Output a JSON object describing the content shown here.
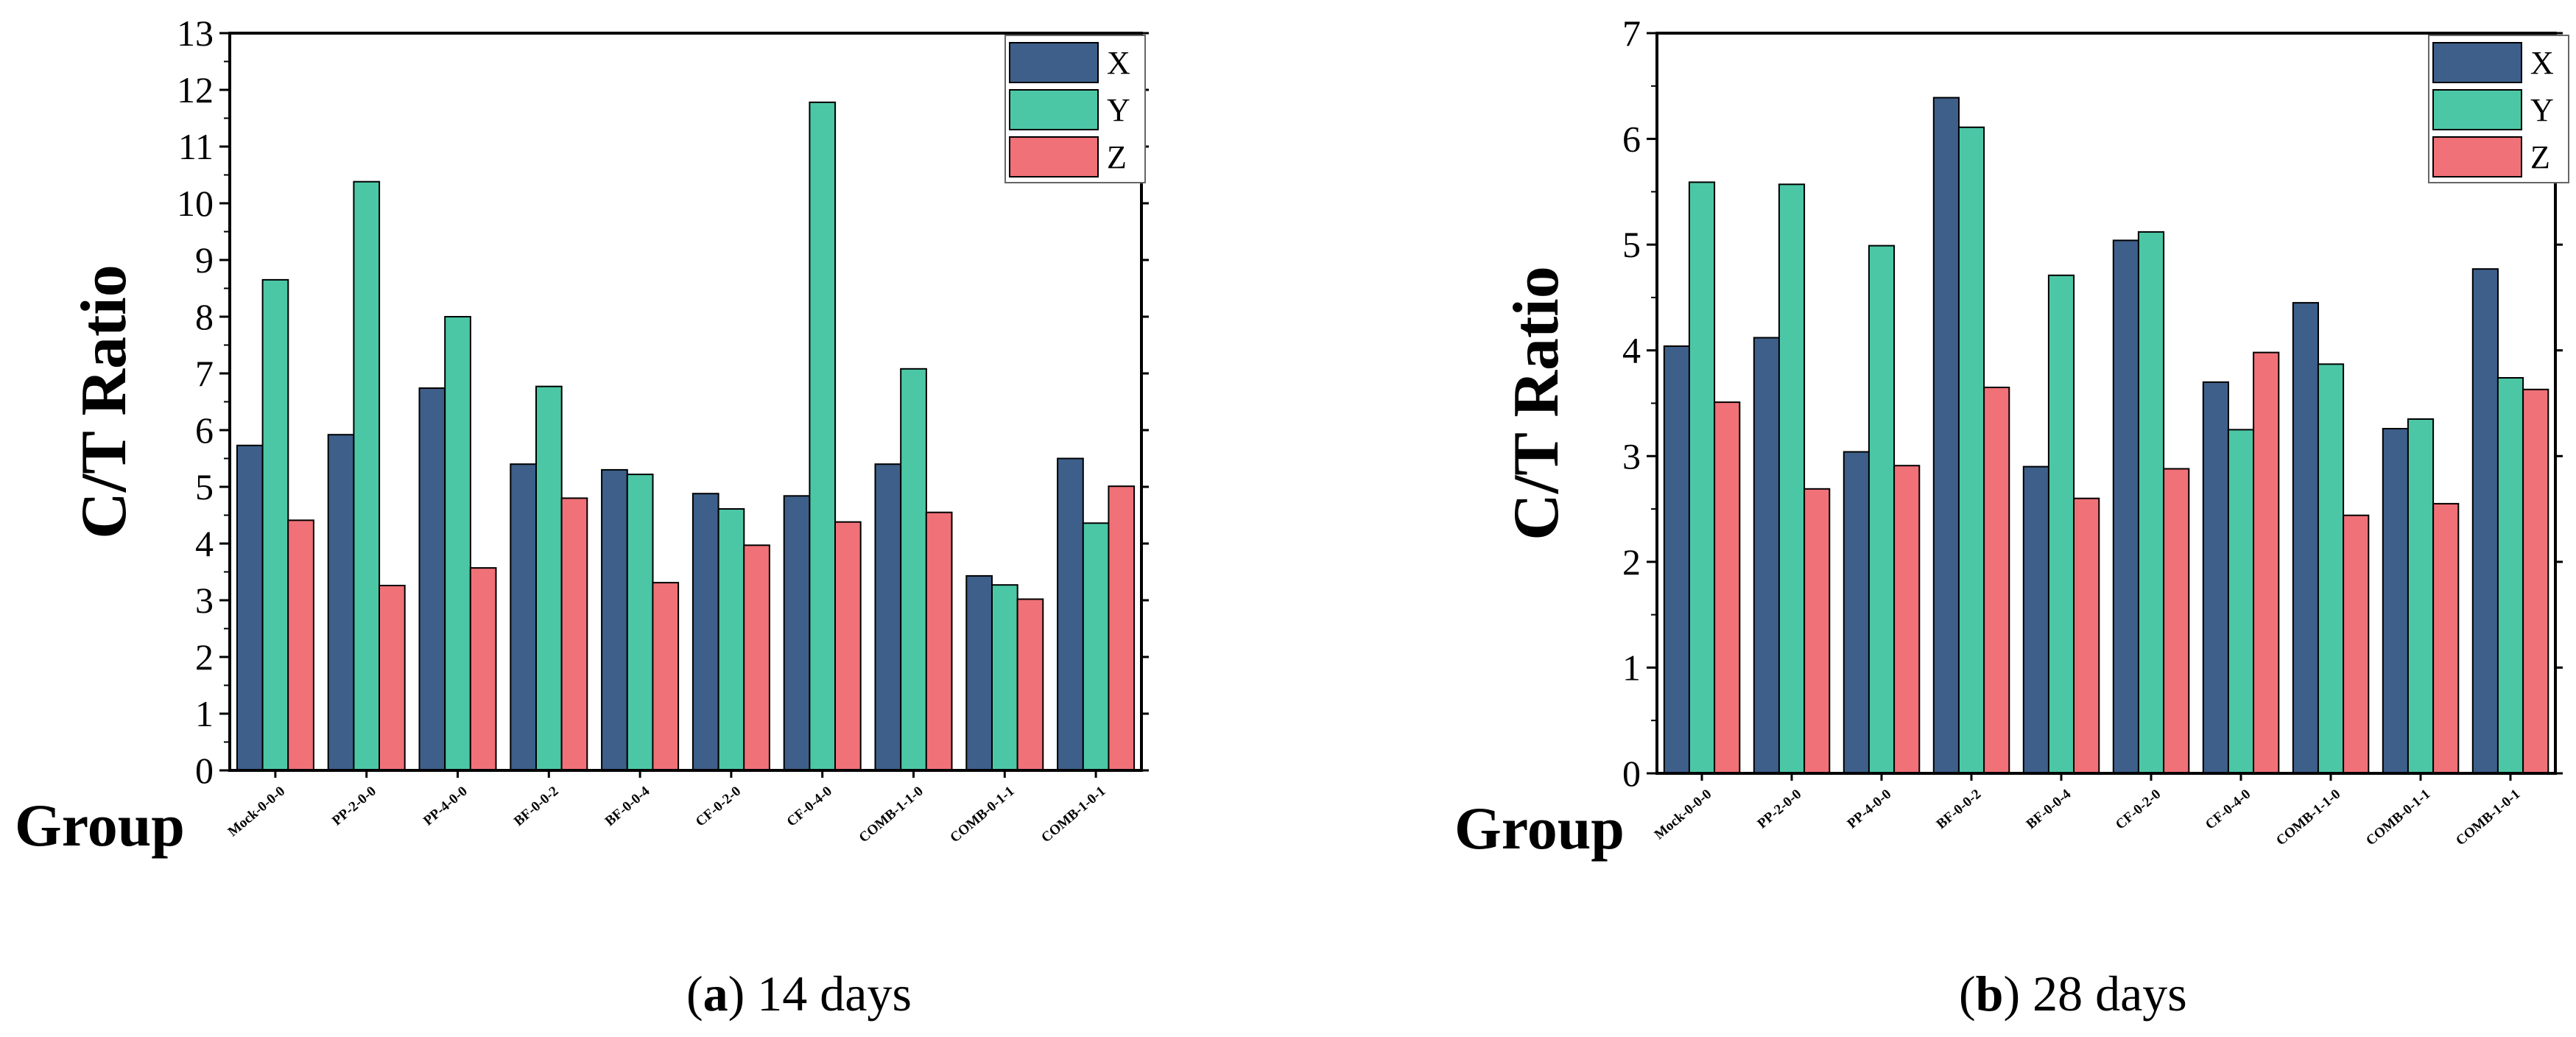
{
  "chart_data": [
    {
      "type": "bar",
      "caption_letter": "a",
      "caption_text": " 14 days",
      "xlabel": "Group",
      "ylabel": "C/T Ratio",
      "ylim": [
        0,
        13
      ],
      "yticks": [
        0,
        1,
        2,
        3,
        4,
        5,
        6,
        7,
        8,
        9,
        10,
        11,
        12,
        13
      ],
      "categories": [
        "Mock-0-0-0",
        "PP-2-0-0",
        "PP-4-0-0",
        "BF-0-0-2",
        "BF-0-0-4",
        "CF-0-2-0",
        "CF-0-4-0",
        "COMB-1-1-0",
        "COMB-0-1-1",
        "COMB-1-0-1"
      ],
      "series": [
        {
          "name": "X",
          "color": "#3d5f8a",
          "values": [
            5.73,
            5.92,
            6.74,
            5.4,
            5.3,
            4.88,
            4.84,
            5.4,
            3.43,
            5.5
          ]
        },
        {
          "name": "Y",
          "color": "#4cc7a6",
          "values": [
            8.65,
            10.38,
            8.0,
            6.77,
            5.22,
            4.61,
            11.78,
            7.08,
            3.27,
            4.36
          ]
        },
        {
          "name": "Z",
          "color": "#f07177",
          "values": [
            4.41,
            3.26,
            3.57,
            4.8,
            3.31,
            3.97,
            4.38,
            4.55,
            3.02,
            5.01
          ]
        }
      ]
    },
    {
      "type": "bar",
      "caption_letter": "b",
      "caption_text": " 28 days",
      "xlabel": "Group",
      "ylabel": "C/T Ratio",
      "ylim": [
        0,
        7
      ],
      "yticks": [
        0,
        1,
        2,
        3,
        4,
        5,
        6,
        7
      ],
      "categories": [
        "Mock-0-0-0",
        "PP-2-0-0",
        "PP-4-0-0",
        "BF-0-0-2",
        "BF-0-0-4",
        "CF-0-2-0",
        "CF-0-4-0",
        "COMB-1-1-0",
        "COMB-0-1-1",
        "COMB-1-0-1"
      ],
      "series": [
        {
          "name": "X",
          "color": "#3d5f8a",
          "values": [
            4.04,
            4.12,
            3.04,
            6.39,
            2.9,
            5.04,
            3.7,
            4.45,
            3.26,
            4.77
          ]
        },
        {
          "name": "Y",
          "color": "#4cc7a6",
          "values": [
            5.59,
            5.57,
            4.99,
            6.11,
            4.71,
            5.12,
            3.25,
            3.87,
            3.35,
            3.74
          ]
        },
        {
          "name": "Z",
          "color": "#f07177",
          "values": [
            3.51,
            2.69,
            2.91,
            3.65,
            2.6,
            2.88,
            3.98,
            2.44,
            2.55,
            3.63
          ]
        }
      ]
    }
  ]
}
